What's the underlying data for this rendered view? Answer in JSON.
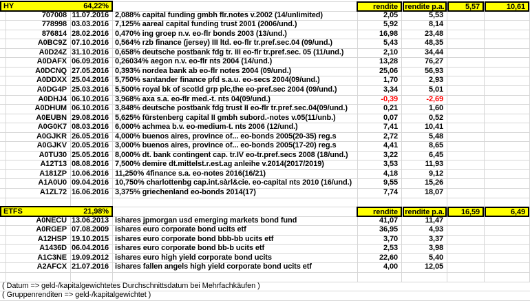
{
  "colors": {
    "highlight": "#ffff00",
    "negative_value": "#ff0000",
    "gridline": "#d6d6d6",
    "border": "#000000"
  },
  "sections": [
    {
      "name": "HY",
      "percent": "64,22%",
      "col_rendite_label": "rendite",
      "col_rendite_pa_label": "rendite p.a.",
      "group_rendite": "5,57",
      "group_rendite_pa": "10,61",
      "rows": [
        {
          "wkn": "707008",
          "date": "11.07.2016",
          "name": "2,088% capital funding gmbh flr.notes v.2002 (14/unlimited)",
          "rendite": "2,05",
          "rendite_pa": "5,53"
        },
        {
          "wkn": "778998",
          "date": "03.03.2016",
          "name": "7,125% aareal capital funding trust 2001 (2006/und.)",
          "rendite": "5,92",
          "rendite_pa": "8,14"
        },
        {
          "wkn": "876814",
          "date": "28.02.2016",
          "name": "0,470% ing groep n.v. eo-flr bonds 2003 (13/und.)",
          "rendite": "16,98",
          "rendite_pa": "23,48"
        },
        {
          "wkn": "A0BC9Z",
          "date": "07.10.2016",
          "name": "0,564% rzb finance (jersey) III ltd. eo-flr tr.pref.sec.04 (09/und.)",
          "rendite": "5,43",
          "rendite_pa": "48,35"
        },
        {
          "wkn": "A0D24Z",
          "date": "31.10.2016",
          "name": "0,658% deutsche postbank fdg tr. III eo-flr tr.pref.sec. 05 (11/und.)",
          "rendite": "2,10",
          "rendite_pa": "34,44"
        },
        {
          "wkn": "A0DAFX",
          "date": "06.09.2016",
          "name": "0,26034% aegon n.v. eo-flr nts 2004 (14/und.)",
          "rendite": "13,28",
          "rendite_pa": "76,27"
        },
        {
          "wkn": "A0DCNQ",
          "date": "27.05.2016",
          "name": "0,393% nordea bank ab eo-flr notes 2004 (09/und.)",
          "rendite": "25,06",
          "rendite_pa": "56,93"
        },
        {
          "wkn": "A0DDXX",
          "date": "25.04.2016",
          "name": "5,750% santander finance pfd s.a.u. eo-secs 2004(09/und.)",
          "rendite": "1,70",
          "rendite_pa": "2,93"
        },
        {
          "wkn": "A0DG4P",
          "date": "25.03.2016",
          "name": "5,500% royal bk of scotld grp plc,the eo-pref.sec 2004 (09/und.)",
          "rendite": "3,34",
          "rendite_pa": "5,01"
        },
        {
          "wkn": "A0DHJ4",
          "date": "06.10.2016",
          "name": "3,968% axa s.a. eo-flr med.-t. nts 04(09/und.)",
          "rendite": "-0,39",
          "rendite_pa": "-2,69"
        },
        {
          "wkn": "A0DHUM",
          "date": "06.10.2016",
          "name": "3,848% deutsche postbank fdg trust II eo-flr tr.pref.sec.04(09/und.)",
          "rendite": "0,21",
          "rendite_pa": "1,60"
        },
        {
          "wkn": "A0EUBN",
          "date": "29.08.2016",
          "name": "5,625% fürstenberg capital II gmbh subord.-notes v.05(11/unb.)",
          "rendite": "0,07",
          "rendite_pa": "0,52"
        },
        {
          "wkn": "A0G0K7",
          "date": "08.03.2016",
          "name": "6,000% achmea b.v. eo-medium-t. nts 2006 (12/und.)",
          "rendite": "7,41",
          "rendite_pa": "10,41"
        },
        {
          "wkn": "A0GJKR",
          "date": "26.05.2016",
          "name": "4,000% buenos aires, province of... eo-bonds 2005(20-35) reg.s",
          "rendite": "2,72",
          "rendite_pa": "5,48"
        },
        {
          "wkn": "A0GJKV",
          "date": "20.05.2016",
          "name": "3,000% buenos aires, province of... eo-bonds 2005(17-20) reg.s",
          "rendite": "4,41",
          "rendite_pa": "8,65"
        },
        {
          "wkn": "A0TU30",
          "date": "25.05.2016",
          "name": "8,000% dt. bank contingent cap. tr.IV eo-tr.pref.secs 2008 (18/und.)",
          "rendite": "3,22",
          "rendite_pa": "6,45"
        },
        {
          "wkn": "A12T13",
          "date": "08.08.2016",
          "name": "7,500% demire dt.mittelst.r.est.ag anleihe v.2014(2017/2019)",
          "rendite": "3,53",
          "rendite_pa": "11,93"
        },
        {
          "wkn": "A181ZP",
          "date": "10.06.2016",
          "name": "11,250% 4finance s.a. eo-notes 2016(16/21)",
          "rendite": "4,18",
          "rendite_pa": "9,12"
        },
        {
          "wkn": "A1A0U0",
          "date": "09.04.2016",
          "name": "10,750% charlottenbg cap.int.sàrl&cie. eo-capital nts 2010 (16/und.)",
          "rendite": "9,55",
          "rendite_pa": "15,26"
        },
        {
          "wkn": "A1ZL72",
          "date": "16.06.2016",
          "name": "3,375% griechenland eo-bonds 2014(17)",
          "rendite": "7,74",
          "rendite_pa": "18,07"
        }
      ]
    },
    {
      "name": "ETFS",
      "percent": "21,98%",
      "col_rendite_label": "rendite",
      "col_rendite_pa_label": "rendite p.a.",
      "group_rendite": "16,59",
      "group_rendite_pa": "6,49",
      "rows": [
        {
          "wkn": "A0NECU",
          "date": "13.06.2013",
          "name": "ishares jpmorgan usd emerging markets bond fund",
          "rendite": "41,07",
          "rendite_pa": "11,47"
        },
        {
          "wkn": "A0RGEP",
          "date": "07.08.2009",
          "name": "ishares euro corporate bond ucits etf",
          "rendite": "36,95",
          "rendite_pa": "4,93"
        },
        {
          "wkn": "A12HSP",
          "date": "19.10.2015",
          "name": "ishares euro corporate bond bbb-bb ucits etf",
          "rendite": "3,70",
          "rendite_pa": "3,37"
        },
        {
          "wkn": "A1436D",
          "date": "06.04.2016",
          "name": "ishares euro corporate bond bb-b ucits etf",
          "rendite": "2,53",
          "rendite_pa": "3,98"
        },
        {
          "wkn": "A1C3NE",
          "date": "19.09.2012",
          "name": "ishares euro high yield corporate bond ucits",
          "rendite": "22,60",
          "rendite_pa": "5,40"
        },
        {
          "wkn": "A2AFCX",
          "date": "21.07.2016",
          "name": "ishares fallen angels high yield corporate bond ucits etf",
          "rendite": "4,00",
          "rendite_pa": "12,05"
        }
      ]
    }
  ],
  "footnotes": [
    "( Datum => geld-/kapitalgewichtetes Durchschnittsdatum bei Mehrfachkäufen )",
    "( Gruppenrenditen => geld-/kapitalgewichtet )"
  ]
}
